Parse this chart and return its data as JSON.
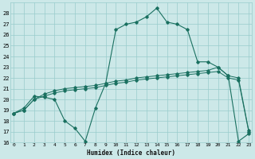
{
  "xlabel": "Humidex (Indice chaleur)",
  "bg_color": "#cce8e8",
  "grid_color": "#99cccc",
  "line_color": "#1a7060",
  "xlim": [
    0,
    23
  ],
  "ylim": [
    16,
    29
  ],
  "yticks": [
    16,
    17,
    18,
    19,
    20,
    21,
    22,
    23,
    24,
    25,
    26,
    27,
    28
  ],
  "xticks": [
    0,
    1,
    2,
    3,
    4,
    5,
    6,
    7,
    8,
    9,
    10,
    11,
    12,
    13,
    14,
    15,
    16,
    17,
    18,
    19,
    20,
    21,
    22,
    23
  ],
  "s1_x": [
    0,
    1,
    2,
    3,
    4,
    5,
    6,
    7,
    8,
    9,
    10,
    11,
    12,
    13,
    14,
    15,
    16,
    17,
    18,
    19,
    20,
    21,
    22,
    23
  ],
  "s1_y": [
    18.7,
    19.2,
    20.3,
    20.2,
    20.0,
    18.0,
    17.3,
    16.1,
    19.2,
    21.5,
    26.5,
    27.0,
    27.2,
    27.7,
    28.5,
    27.2,
    27.0,
    26.5,
    23.5,
    23.5,
    23.0,
    22.2,
    16.1,
    16.8
  ],
  "s2_x": [
    0,
    1,
    2,
    3,
    4,
    5,
    6,
    7,
    8,
    9,
    10,
    11,
    12,
    13,
    14,
    15,
    16,
    17,
    18,
    19,
    20,
    21,
    22,
    23
  ],
  "s2_y": [
    18.7,
    19.0,
    20.0,
    20.5,
    20.8,
    21.0,
    21.1,
    21.2,
    21.3,
    21.5,
    21.7,
    21.8,
    22.0,
    22.1,
    22.2,
    22.3,
    22.4,
    22.5,
    22.6,
    22.7,
    23.0,
    22.2,
    22.0,
    17.1
  ],
  "s3_x": [
    0,
    1,
    2,
    3,
    4,
    5,
    6,
    7,
    8,
    9,
    10,
    11,
    12,
    13,
    14,
    15,
    16,
    17,
    18,
    19,
    20,
    21,
    22,
    23
  ],
  "s3_y": [
    18.7,
    19.0,
    20.0,
    20.3,
    20.6,
    20.8,
    20.9,
    21.0,
    21.1,
    21.3,
    21.5,
    21.6,
    21.8,
    21.9,
    22.0,
    22.1,
    22.2,
    22.3,
    22.4,
    22.5,
    22.6,
    22.0,
    21.8,
    17.0
  ]
}
